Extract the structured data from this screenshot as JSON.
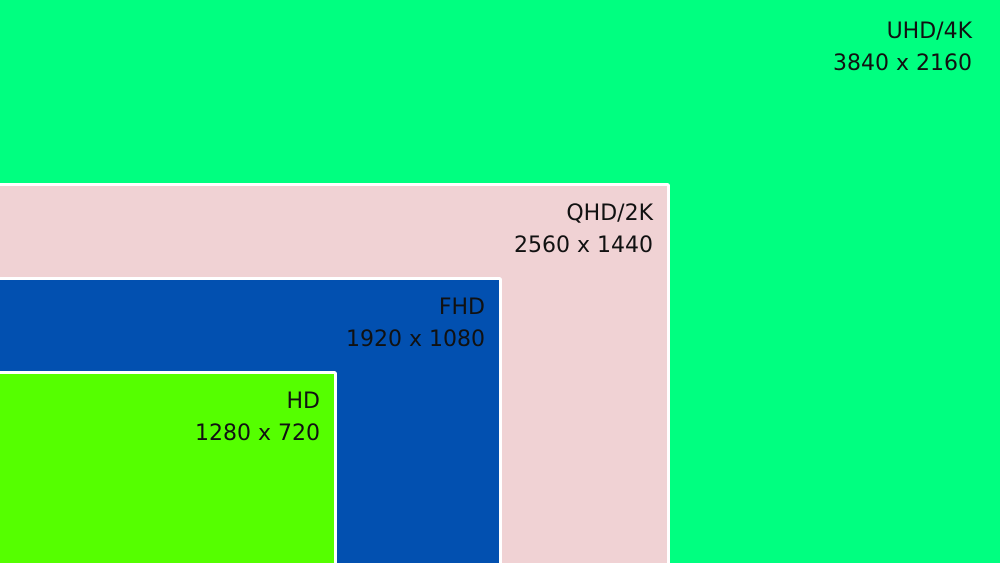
{
  "resolutions": [
    {
      "name": "UHD/4K",
      "dims": "3840 x 2160",
      "color": "#00ff80"
    },
    {
      "name": "QHD/2K",
      "dims": "2560 x 1440",
      "color": "#f0d2d4"
    },
    {
      "name": "FHD",
      "dims": "1920 x 1080",
      "color": "#0250b0"
    },
    {
      "name": "HD",
      "dims": "1280 x 720",
      "color": "#55ff00"
    }
  ]
}
